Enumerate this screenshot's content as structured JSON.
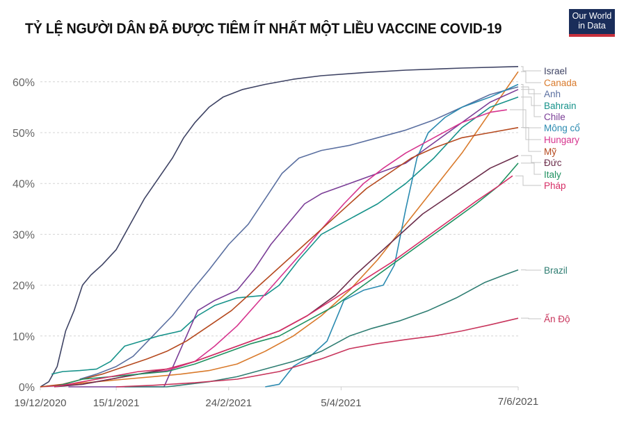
{
  "title": "TỶ LỆ NGƯỜI DÂN ĐÃ ĐƯỢC TIÊM ÍT NHẤT MỘT LIỀU VACCINE COVID-19",
  "logo": {
    "line1": "Our World",
    "line2": "in Data",
    "bg": "#1a2d5a",
    "accent": "#c8303c"
  },
  "chart_data": {
    "type": "line",
    "title": "TỶ LỆ NGƯỜI DÂN ĐÃ ĐƯỢC TIÊM ÍT NHẤT MỘT LIỀU VACCINE COVID-19",
    "xlabel": "",
    "ylabel": "",
    "ylim": [
      0,
      63
    ],
    "yticks": [
      "0%",
      "10%",
      "20%",
      "30%",
      "40%",
      "50%",
      "60%"
    ],
    "xticks": [
      "19/12/2020",
      "15/1/2021",
      "24/2/2021",
      "5/4/2021",
      "7/6/2021"
    ],
    "grid": true,
    "legend_position": "right (direct labels)",
    "x_days_note": "x = days since 19/12/2020; 7/6/2021 = day 170",
    "series": [
      {
        "name": "Israel",
        "color": "#3d4263",
        "points": [
          [
            0,
            0
          ],
          [
            3,
            1
          ],
          [
            6,
            4
          ],
          [
            9,
            11
          ],
          [
            12,
            15
          ],
          [
            15,
            20
          ],
          [
            18,
            22
          ],
          [
            22,
            24
          ],
          [
            27,
            27
          ],
          [
            32,
            32
          ],
          [
            37,
            37
          ],
          [
            42,
            41
          ],
          [
            47,
            45
          ],
          [
            51,
            49
          ],
          [
            55,
            52
          ],
          [
            60,
            55
          ],
          [
            65,
            57
          ],
          [
            72,
            58.5
          ],
          [
            80,
            59.5
          ],
          [
            90,
            60.5
          ],
          [
            100,
            61.2
          ],
          [
            115,
            61.8
          ],
          [
            130,
            62.3
          ],
          [
            150,
            62.7
          ],
          [
            170,
            63
          ]
        ]
      },
      {
        "name": "Canada",
        "color": "#d97a2b",
        "points": [
          [
            0,
            0
          ],
          [
            10,
            0.5
          ],
          [
            20,
            1
          ],
          [
            30,
            1.5
          ],
          [
            40,
            2
          ],
          [
            50,
            2.5
          ],
          [
            60,
            3.2
          ],
          [
            70,
            4.5
          ],
          [
            80,
            7
          ],
          [
            90,
            10
          ],
          [
            100,
            14
          ],
          [
            110,
            19
          ],
          [
            120,
            25
          ],
          [
            130,
            32
          ],
          [
            140,
            39
          ],
          [
            150,
            46
          ],
          [
            160,
            54
          ],
          [
            170,
            62
          ]
        ]
      },
      {
        "name": "Anh",
        "color": "#5a6fa0",
        "points": [
          [
            14,
            1.5
          ],
          [
            20,
            2.5
          ],
          [
            27,
            4
          ],
          [
            33,
            6
          ],
          [
            40,
            10
          ],
          [
            47,
            14
          ],
          [
            54,
            19
          ],
          [
            60,
            23
          ],
          [
            67,
            28
          ],
          [
            74,
            32
          ],
          [
            80,
            37
          ],
          [
            86,
            42
          ],
          [
            92,
            45
          ],
          [
            100,
            46.5
          ],
          [
            110,
            47.5
          ],
          [
            120,
            49
          ],
          [
            130,
            50.5
          ],
          [
            140,
            52.5
          ],
          [
            150,
            55
          ],
          [
            160,
            57.5
          ],
          [
            170,
            59
          ]
        ]
      },
      {
        "name": "Bahrain",
        "color": "#16928a",
        "points": [
          [
            4,
            2.5
          ],
          [
            8,
            3
          ],
          [
            14,
            3.2
          ],
          [
            20,
            3.5
          ],
          [
            25,
            5
          ],
          [
            30,
            8
          ],
          [
            36,
            9
          ],
          [
            42,
            10
          ],
          [
            50,
            11
          ],
          [
            56,
            14
          ],
          [
            62,
            16
          ],
          [
            70,
            17.5
          ],
          [
            80,
            18
          ],
          [
            85,
            20
          ],
          [
            92,
            25
          ],
          [
            100,
            30
          ],
          [
            110,
            33
          ],
          [
            120,
            36
          ],
          [
            130,
            40
          ],
          [
            140,
            45
          ],
          [
            150,
            51
          ],
          [
            160,
            55
          ],
          [
            170,
            57
          ]
        ]
      },
      {
        "name": "Chile",
        "color": "#7a3d96",
        "points": [
          [
            10,
            0
          ],
          [
            30,
            0
          ],
          [
            44,
            0
          ],
          [
            48,
            5
          ],
          [
            52,
            10
          ],
          [
            56,
            15
          ],
          [
            62,
            17
          ],
          [
            70,
            19
          ],
          [
            76,
            23
          ],
          [
            82,
            28
          ],
          [
            88,
            32
          ],
          [
            94,
            36
          ],
          [
            100,
            38
          ],
          [
            110,
            40
          ],
          [
            120,
            42
          ],
          [
            130,
            44
          ],
          [
            140,
            48
          ],
          [
            150,
            52
          ],
          [
            160,
            56
          ],
          [
            170,
            58.5
          ]
        ]
      },
      {
        "name": "Mông cổ",
        "color": "#2a8ab0",
        "points": [
          [
            80,
            0
          ],
          [
            85,
            0.5
          ],
          [
            90,
            4
          ],
          [
            96,
            6
          ],
          [
            102,
            9
          ],
          [
            108,
            17
          ],
          [
            115,
            19
          ],
          [
            122,
            20
          ],
          [
            126,
            24
          ],
          [
            130,
            35
          ],
          [
            134,
            45
          ],
          [
            138,
            50
          ],
          [
            144,
            53
          ],
          [
            150,
            55
          ],
          [
            160,
            57
          ],
          [
            170,
            59.5
          ]
        ]
      },
      {
        "name": "Hungary",
        "color": "#d6348e",
        "points": [
          [
            0,
            0
          ],
          [
            15,
            0.5
          ],
          [
            25,
            1.5
          ],
          [
            35,
            2.5
          ],
          [
            45,
            3.2
          ],
          [
            55,
            5
          ],
          [
            62,
            8
          ],
          [
            70,
            12
          ],
          [
            78,
            17
          ],
          [
            86,
            22
          ],
          [
            94,
            27
          ],
          [
            100,
            31
          ],
          [
            108,
            36
          ],
          [
            115,
            40
          ],
          [
            122,
            43
          ],
          [
            130,
            46
          ],
          [
            140,
            49
          ],
          [
            150,
            52
          ],
          [
            160,
            54
          ],
          [
            166,
            54.5
          ]
        ]
      },
      {
        "name": "Mỹ",
        "color": "#b5491e",
        "points": [
          [
            0,
            0
          ],
          [
            8,
            0.5
          ],
          [
            15,
            1.5
          ],
          [
            22,
            2.5
          ],
          [
            30,
            4
          ],
          [
            38,
            5.5
          ],
          [
            45,
            7
          ],
          [
            52,
            9
          ],
          [
            60,
            12
          ],
          [
            68,
            15
          ],
          [
            76,
            19
          ],
          [
            84,
            23
          ],
          [
            92,
            27
          ],
          [
            100,
            31
          ],
          [
            108,
            35
          ],
          [
            116,
            39
          ],
          [
            124,
            42
          ],
          [
            132,
            45
          ],
          [
            140,
            47
          ],
          [
            150,
            49
          ],
          [
            160,
            50
          ],
          [
            170,
            51
          ]
        ]
      },
      {
        "name": "Đức",
        "color": "#6b2d4b",
        "points": [
          [
            5,
            0
          ],
          [
            15,
            0.5
          ],
          [
            25,
            1.5
          ],
          [
            35,
            2.5
          ],
          [
            45,
            3.5
          ],
          [
            55,
            5
          ],
          [
            65,
            7
          ],
          [
            75,
            9
          ],
          [
            85,
            11
          ],
          [
            95,
            14
          ],
          [
            105,
            18
          ],
          [
            112,
            22
          ],
          [
            120,
            26
          ],
          [
            128,
            30
          ],
          [
            136,
            34
          ],
          [
            144,
            37
          ],
          [
            152,
            40
          ],
          [
            160,
            43
          ],
          [
            170,
            45.5
          ]
        ]
      },
      {
        "name": "Italy",
        "color": "#1f9160",
        "points": [
          [
            5,
            0
          ],
          [
            15,
            1.5
          ],
          [
            25,
            2
          ],
          [
            35,
            2.5
          ],
          [
            45,
            3
          ],
          [
            55,
            4.5
          ],
          [
            65,
            6.5
          ],
          [
            75,
            8.5
          ],
          [
            85,
            10
          ],
          [
            95,
            13
          ],
          [
            105,
            16
          ],
          [
            115,
            20
          ],
          [
            125,
            24
          ],
          [
            135,
            28
          ],
          [
            145,
            32
          ],
          [
            155,
            36
          ],
          [
            163,
            39.5
          ],
          [
            170,
            44
          ]
        ]
      },
      {
        "name": "Pháp",
        "color": "#d62e66",
        "points": [
          [
            5,
            0
          ],
          [
            15,
            1
          ],
          [
            25,
            2
          ],
          [
            35,
            3
          ],
          [
            45,
            3.5
          ],
          [
            55,
            5
          ],
          [
            65,
            7
          ],
          [
            75,
            9
          ],
          [
            85,
            11
          ],
          [
            95,
            14
          ],
          [
            105,
            17.5
          ],
          [
            115,
            21
          ],
          [
            125,
            24.5
          ],
          [
            135,
            28.5
          ],
          [
            145,
            32.5
          ],
          [
            155,
            36.5
          ],
          [
            163,
            39.5
          ],
          [
            168,
            41.5
          ]
        ]
      },
      {
        "name": "Brazil",
        "color": "#2e7d72",
        "points": [
          [
            30,
            0
          ],
          [
            45,
            0
          ],
          [
            60,
            1
          ],
          [
            70,
            2
          ],
          [
            80,
            3.5
          ],
          [
            90,
            5
          ],
          [
            100,
            7
          ],
          [
            110,
            10
          ],
          [
            118,
            11.5
          ],
          [
            128,
            13
          ],
          [
            138,
            15
          ],
          [
            148,
            17.5
          ],
          [
            158,
            20.5
          ],
          [
            165,
            22
          ],
          [
            170,
            23
          ]
        ]
      },
      {
        "name": "Ấn Độ",
        "color": "#c8355c",
        "points": [
          [
            27,
            0
          ],
          [
            40,
            0.3
          ],
          [
            55,
            0.8
          ],
          [
            70,
            1.5
          ],
          [
            85,
            3
          ],
          [
            100,
            5.5
          ],
          [
            110,
            7.5
          ],
          [
            120,
            8.5
          ],
          [
            130,
            9.3
          ],
          [
            140,
            10
          ],
          [
            150,
            11
          ],
          [
            160,
            12.2
          ],
          [
            170,
            13.5
          ]
        ]
      }
    ]
  },
  "labels": {
    "Israel": "Israel",
    "Canada": "Canada",
    "Anh": "Anh",
    "Bahrain": "Bahrain",
    "Chile": "Chile",
    "Mongco": "Mông cổ",
    "Hungary": "Hungary",
    "My": "Mỹ",
    "Duc": "Đức",
    "Italy": "Italy",
    "Phap": "Pháp",
    "Brazil": "Brazil",
    "AnDo": "Ấn Độ"
  }
}
